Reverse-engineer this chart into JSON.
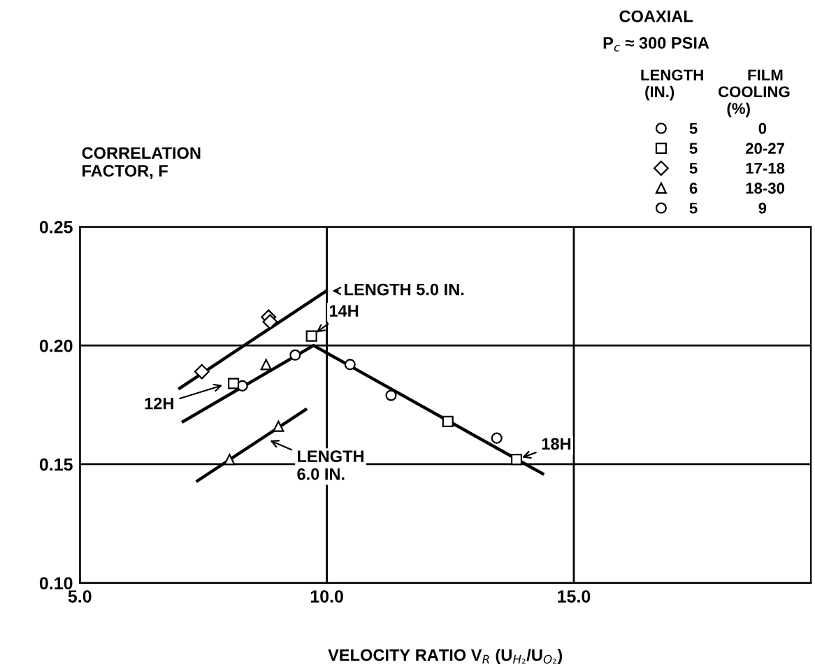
{
  "chart_data": {
    "type": "scatter",
    "title": "COAXIAL",
    "subtitle": "P$_{c}$ ≈ 300 PSIA",
    "xlabel": "VELOCITY RATIO V$_{R}$ (U$_{H₂}$/U$_{O₂}$)",
    "ylabel": "CORRELATION\nFACTOR, F",
    "legend_title": "LENGTH          FILM\n (IN.)          COOLING\n                    (%)",
    "xlim": [
      5,
      19.8
    ],
    "ylim": [
      0.1,
      0.25
    ],
    "xticks": [
      {
        "value": 5,
        "label": "5.0"
      },
      {
        "value": 10,
        "label": "10.0"
      },
      {
        "value": 15,
        "label": "15.0"
      }
    ],
    "yticks": [
      {
        "value": 0.1,
        "label": "0.10"
      },
      0.15,
      {
        "value": 0.2,
        "label": "0.20"
      },
      0.25
    ],
    "grid": true,
    "legend": "top right",
    "series": [
      {
        "name": "5              0",
        "type": "scatter",
        "marker": "circle",
        "color": "#000000",
        "x": [
          8.29,
          9.36,
          10.47,
          13.44
        ],
        "values": [
          0.183,
          0.196,
          0.192,
          0.161
        ]
      },
      {
        "name": "5           20-27",
        "type": "scatter",
        "marker": "square",
        "color": "#000000",
        "x": [
          8.11,
          9.69,
          12.45,
          13.84
        ],
        "values": [
          0.184,
          0.204,
          0.168,
          0.152
        ]
      },
      {
        "name": "5           17-18",
        "type": "scatter",
        "marker": "diamond",
        "color": "#000000",
        "x": [
          7.47,
          8.82,
          8.85
        ],
        "values": [
          0.189,
          0.212,
          0.21
        ]
      },
      {
        "name": "6           18-30",
        "type": "scatter",
        "marker": "triangle",
        "color": "#000000",
        "x": [
          8.03,
          8.77,
          9.02
        ],
        "values": [
          0.152,
          0.192,
          0.166
        ]
      },
      {
        "name": "5              9",
        "type": "scatter",
        "marker": "circle",
        "color": "#000000",
        "x": [
          11.3
        ],
        "values": [
          0.179
        ]
      },
      {
        "type": "line",
        "marker": "none",
        "color": "#000000",
        "x": [
          7.02,
          9.99
        ],
        "values": [
          0.182,
          0.223
        ]
      },
      {
        "type": "line",
        "marker": "none",
        "color": "#000000",
        "x": [
          7.09,
          9.73,
          14.37
        ],
        "values": [
          0.168,
          0.2,
          0.146
        ]
      },
      {
        "type": "line",
        "marker": "none",
        "color": "#000000",
        "x": [
          7.38,
          9.57
        ],
        "values": [
          0.143,
          0.173
        ]
      }
    ],
    "annotations": [
      {
        "text": "LENGTH 5.0 IN.",
        "x": 9.99,
        "y": 0.223
      },
      {
        "text": "14H",
        "x": 9.69,
        "y": 0.204
      },
      {
        "text": "12H",
        "x": 8.0,
        "y": 0.184
      },
      {
        "text": "LENGTH\n6.0 IN.",
        "x": 8.74,
        "y": 0.161
      },
      {
        "text": "18H",
        "x": 13.84,
        "y": 0.152
      }
    ]
  }
}
